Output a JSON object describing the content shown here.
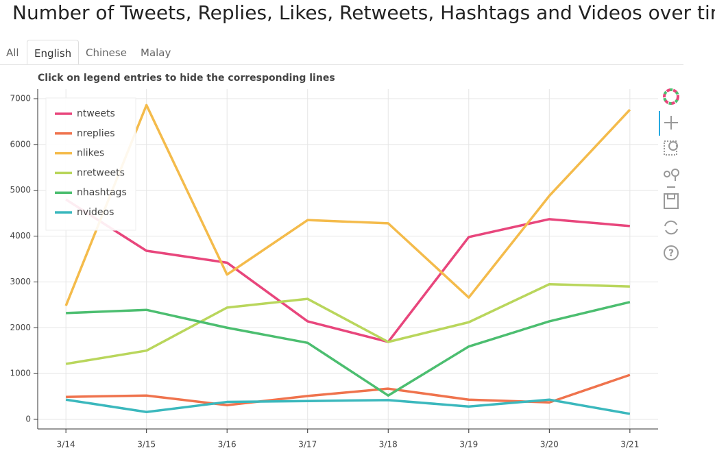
{
  "title": "Number of Tweets, Replies, Likes, Retweets, Hashtags and Videos over time",
  "tabs": [
    "All",
    "English",
    "Chinese",
    "Malay"
  ],
  "active_tab": 1,
  "chart_data": {
    "type": "line",
    "subtitle": "Click on legend entries to hide the corresponding lines",
    "categories": [
      "3/14",
      "3/15",
      "3/16",
      "3/17",
      "3/18",
      "3/19",
      "3/20",
      "3/21"
    ],
    "series": [
      {
        "name": "ntweets",
        "color": "#e8467c",
        "values": [
          4800,
          3680,
          3420,
          2140,
          1690,
          3980,
          4370,
          4220
        ]
      },
      {
        "name": "nreplies",
        "color": "#ef734d",
        "values": [
          490,
          520,
          310,
          510,
          670,
          430,
          370,
          970
        ]
      },
      {
        "name": "nlikes",
        "color": "#f4bb4b",
        "values": [
          2480,
          6860,
          3160,
          4350,
          4280,
          2660,
          4880,
          6760
        ]
      },
      {
        "name": "nretweets",
        "color": "#b9d65c",
        "values": [
          1210,
          1500,
          2440,
          2630,
          1690,
          2120,
          2950,
          2900
        ]
      },
      {
        "name": "nhashtags",
        "color": "#4cbe70",
        "values": [
          2320,
          2390,
          2000,
          1670,
          520,
          1590,
          2140,
          2560
        ]
      },
      {
        "name": "nvideos",
        "color": "#3bb8bd",
        "values": [
          430,
          160,
          380,
          400,
          420,
          280,
          430,
          120
        ]
      }
    ],
    "ylim": [
      -210,
      7210
    ],
    "yticks": [
      0,
      1000,
      2000,
      3000,
      4000,
      5000,
      6000,
      7000
    ],
    "grid": true,
    "legend": "top-left"
  }
}
